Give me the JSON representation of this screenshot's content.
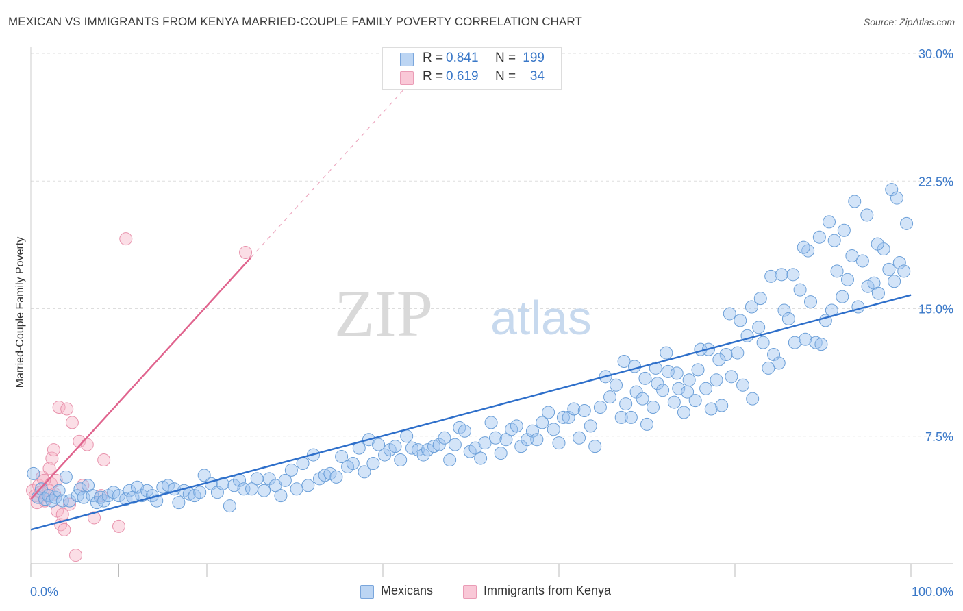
{
  "title": "MEXICAN VS IMMIGRANTS FROM KENYA MARRIED-COUPLE FAMILY POVERTY CORRELATION CHART",
  "source": "Source: ZipAtlas.com",
  "watermark": {
    "part1": "ZIP",
    "part2": "atlas"
  },
  "legend_top": {
    "rows": [
      {
        "r_label": "R =",
        "r_value": "0.841",
        "n_label": "N =",
        "n_value": "199"
      },
      {
        "r_label": "R =",
        "r_value": "0.619",
        "n_label": "N =",
        "n_value": "34"
      }
    ]
  },
  "legend_bottom": {
    "series_a": "Mexicans",
    "series_b": "Immigrants from Kenya"
  },
  "colors": {
    "mexicans_fill": "#9ec4ef",
    "mexicans_stroke": "#6b9fd8",
    "mexicans_line": "#2e6fca",
    "kenya_fill": "#f6b5c8",
    "kenya_stroke": "#e892ac",
    "kenya_line": "#e0648e",
    "axis_text": "#3a78c8",
    "grid": "#dddddd"
  },
  "chart_data": {
    "type": "scatter",
    "title": "MEXICAN VS IMMIGRANTS FROM KENYA MARRIED-COUPLE FAMILY POVERTY CORRELATION CHART",
    "xlabel": "",
    "ylabel": "Married-Couple Family Poverty",
    "xlim": [
      0,
      100
    ],
    "ylim": [
      0,
      30
    ],
    "x_tick_labels": [
      "0.0%",
      "100.0%"
    ],
    "y_ticks": [
      7.5,
      15.0,
      22.5,
      30.0
    ],
    "y_tick_labels": [
      "7.5%",
      "15.0%",
      "22.5%",
      "30.0%"
    ],
    "grid": "horizontal dashed",
    "legend_position": "top-center and bottom",
    "series": [
      {
        "name": "Mexicans",
        "R": 0.841,
        "N": 199,
        "trend": {
          "x": [
            0,
            100
          ],
          "y": [
            2.0,
            15.8
          ]
        },
        "points": [
          [
            0.3,
            5.3
          ],
          [
            0.8,
            3.9
          ],
          [
            1.2,
            4.4
          ],
          [
            1.6,
            3.8
          ],
          [
            2.0,
            4.0
          ],
          [
            2.4,
            3.7
          ],
          [
            2.8,
            3.9
          ],
          [
            3.2,
            4.3
          ],
          [
            3.6,
            3.7
          ],
          [
            4.0,
            5.1
          ],
          [
            4.4,
            3.7
          ],
          [
            5.3,
            4.0
          ],
          [
            5.6,
            4.4
          ],
          [
            6.0,
            3.9
          ],
          [
            6.5,
            4.6
          ],
          [
            7.0,
            4.0
          ],
          [
            7.5,
            3.6
          ],
          [
            7.9,
            3.9
          ],
          [
            8.3,
            3.7
          ],
          [
            8.8,
            4.0
          ],
          [
            9.4,
            4.2
          ],
          [
            10.0,
            4.0
          ],
          [
            10.8,
            3.8
          ],
          [
            11.2,
            4.3
          ],
          [
            11.6,
            3.9
          ],
          [
            12.1,
            4.5
          ],
          [
            12.6,
            4.0
          ],
          [
            13.2,
            4.3
          ],
          [
            13.8,
            4.0
          ],
          [
            14.3,
            3.7
          ],
          [
            15.0,
            4.5
          ],
          [
            15.6,
            4.6
          ],
          [
            16.3,
            4.4
          ],
          [
            16.8,
            3.6
          ],
          [
            17.4,
            4.3
          ],
          [
            18.0,
            4.1
          ],
          [
            18.6,
            4.0
          ],
          [
            19.2,
            4.2
          ],
          [
            19.7,
            5.2
          ],
          [
            20.5,
            4.7
          ],
          [
            21.2,
            4.2
          ],
          [
            21.8,
            4.7
          ],
          [
            22.6,
            3.4
          ],
          [
            23.1,
            4.6
          ],
          [
            23.7,
            4.9
          ],
          [
            24.2,
            4.4
          ],
          [
            25.1,
            4.4
          ],
          [
            25.7,
            5.0
          ],
          [
            26.5,
            4.3
          ],
          [
            27.1,
            5.0
          ],
          [
            27.8,
            4.6
          ],
          [
            28.4,
            4.0
          ],
          [
            28.9,
            4.9
          ],
          [
            29.6,
            5.5
          ],
          [
            30.2,
            4.4
          ],
          [
            30.9,
            5.9
          ],
          [
            31.5,
            4.6
          ],
          [
            32.1,
            6.4
          ],
          [
            32.8,
            5.0
          ],
          [
            33.4,
            5.2
          ],
          [
            34.0,
            5.3
          ],
          [
            34.7,
            5.1
          ],
          [
            35.3,
            6.3
          ],
          [
            36.0,
            5.7
          ],
          [
            36.6,
            5.9
          ],
          [
            37.3,
            6.8
          ],
          [
            37.9,
            5.4
          ],
          [
            38.4,
            7.3
          ],
          [
            38.9,
            5.9
          ],
          [
            39.5,
            7.0
          ],
          [
            40.2,
            6.4
          ],
          [
            40.8,
            6.7
          ],
          [
            41.4,
            6.9
          ],
          [
            42.0,
            6.1
          ],
          [
            42.7,
            7.5
          ],
          [
            43.3,
            6.8
          ],
          [
            44.0,
            6.7
          ],
          [
            44.6,
            6.4
          ],
          [
            45.1,
            6.7
          ],
          [
            45.8,
            6.9
          ],
          [
            46.4,
            7.0
          ],
          [
            47.0,
            7.4
          ],
          [
            47.6,
            6.1
          ],
          [
            48.2,
            7.0
          ],
          [
            48.7,
            8.0
          ],
          [
            49.3,
            7.8
          ],
          [
            49.9,
            6.6
          ],
          [
            50.5,
            6.8
          ],
          [
            51.1,
            6.2
          ],
          [
            51.6,
            7.1
          ],
          [
            52.3,
            8.3
          ],
          [
            52.8,
            7.4
          ],
          [
            53.4,
            6.5
          ],
          [
            54.0,
            7.3
          ],
          [
            54.6,
            7.9
          ],
          [
            55.2,
            8.1
          ],
          [
            55.7,
            6.9
          ],
          [
            56.4,
            7.3
          ],
          [
            57.0,
            7.8
          ],
          [
            57.5,
            7.3
          ],
          [
            58.1,
            8.3
          ],
          [
            58.8,
            8.9
          ],
          [
            59.4,
            7.9
          ],
          [
            60.0,
            7.1
          ],
          [
            60.5,
            8.6
          ],
          [
            61.1,
            8.6
          ],
          [
            61.7,
            9.1
          ],
          [
            62.3,
            7.4
          ],
          [
            62.9,
            9.0
          ],
          [
            63.6,
            8.1
          ],
          [
            64.1,
            6.9
          ],
          [
            64.7,
            9.2
          ],
          [
            65.3,
            11.0
          ],
          [
            65.8,
            9.8
          ],
          [
            66.5,
            10.5
          ],
          [
            67.1,
            8.6
          ],
          [
            67.6,
            9.4
          ],
          [
            68.2,
            8.6
          ],
          [
            68.8,
            10.1
          ],
          [
            69.5,
            9.7
          ],
          [
            70.0,
            8.2
          ],
          [
            70.7,
            9.2
          ],
          [
            71.2,
            10.6
          ],
          [
            71.8,
            10.2
          ],
          [
            72.4,
            11.3
          ],
          [
            73.1,
            9.5
          ],
          [
            73.6,
            10.3
          ],
          [
            74.2,
            8.9
          ],
          [
            74.8,
            10.8
          ],
          [
            75.5,
            9.6
          ],
          [
            76.1,
            12.6
          ],
          [
            76.7,
            10.3
          ],
          [
            77.3,
            9.1
          ],
          [
            77.9,
            10.8
          ],
          [
            78.5,
            9.3
          ],
          [
            79.0,
            12.3
          ],
          [
            79.6,
            11.0
          ],
          [
            80.3,
            12.4
          ],
          [
            80.9,
            10.5
          ],
          [
            81.4,
            13.4
          ],
          [
            82.0,
            9.7
          ],
          [
            82.7,
            13.9
          ],
          [
            83.2,
            13.0
          ],
          [
            83.8,
            11.5
          ],
          [
            84.4,
            12.3
          ],
          [
            85.0,
            11.8
          ],
          [
            85.6,
            14.9
          ],
          [
            86.1,
            14.4
          ],
          [
            86.8,
            13.0
          ],
          [
            87.4,
            16.1
          ],
          [
            88.0,
            13.2
          ],
          [
            88.6,
            15.4
          ],
          [
            89.2,
            13.0
          ],
          [
            89.8,
            12.9
          ],
          [
            90.3,
            14.3
          ],
          [
            91.0,
            14.9
          ],
          [
            91.6,
            17.2
          ],
          [
            92.2,
            15.7
          ],
          [
            92.8,
            16.7
          ],
          [
            93.3,
            18.1
          ],
          [
            94.0,
            15.1
          ],
          [
            94.5,
            17.8
          ],
          [
            95.1,
            16.3
          ],
          [
            95.8,
            16.5
          ],
          [
            96.3,
            15.9
          ],
          [
            96.9,
            18.5
          ],
          [
            97.5,
            17.3
          ],
          [
            98.1,
            16.6
          ],
          [
            98.7,
            17.7
          ],
          [
            99.2,
            17.2
          ],
          [
            97.8,
            22.0
          ],
          [
            98.4,
            21.5
          ],
          [
            99.5,
            20.0
          ],
          [
            96.2,
            18.8
          ],
          [
            95.0,
            20.5
          ],
          [
            93.6,
            21.3
          ],
          [
            92.4,
            19.6
          ],
          [
            91.3,
            19.0
          ],
          [
            90.7,
            20.1
          ],
          [
            89.6,
            19.2
          ],
          [
            88.3,
            18.4
          ],
          [
            87.8,
            18.6
          ],
          [
            86.6,
            17.0
          ],
          [
            85.3,
            17.0
          ],
          [
            84.1,
            16.9
          ],
          [
            82.9,
            15.6
          ],
          [
            81.9,
            15.1
          ],
          [
            80.6,
            14.3
          ],
          [
            79.4,
            14.7
          ],
          [
            78.2,
            12.0
          ],
          [
            77.0,
            12.6
          ],
          [
            75.8,
            11.4
          ],
          [
            74.6,
            10.1
          ],
          [
            73.4,
            11.2
          ],
          [
            72.2,
            12.4
          ],
          [
            71.0,
            11.5
          ],
          [
            69.8,
            10.9
          ],
          [
            68.6,
            11.6
          ],
          [
            67.4,
            11.9
          ]
        ]
      },
      {
        "name": "Immigrants from Kenya",
        "R": 0.619,
        "N": 34,
        "trend": {
          "x": [
            0,
            25
          ],
          "y": [
            3.8,
            18.0
          ],
          "dashed_extension": {
            "x": [
              25,
              44
            ],
            "y": [
              18.0,
              28.8
            ]
          }
        },
        "points": [
          [
            0.2,
            4.3
          ],
          [
            0.5,
            4.0
          ],
          [
            0.7,
            3.6
          ],
          [
            0.9,
            4.6
          ],
          [
            1.1,
            4.2
          ],
          [
            1.3,
            5.1
          ],
          [
            1.5,
            4.9
          ],
          [
            1.6,
            3.7
          ],
          [
            1.8,
            4.0
          ],
          [
            2.0,
            4.3
          ],
          [
            2.1,
            5.6
          ],
          [
            2.3,
            4.7
          ],
          [
            2.4,
            6.2
          ],
          [
            2.6,
            6.7
          ],
          [
            2.7,
            4.1
          ],
          [
            2.9,
            4.9
          ],
          [
            3.0,
            3.1
          ],
          [
            3.2,
            9.2
          ],
          [
            3.4,
            2.3
          ],
          [
            3.6,
            2.9
          ],
          [
            3.8,
            2.0
          ],
          [
            4.1,
            9.1
          ],
          [
            4.4,
            3.5
          ],
          [
            4.7,
            8.3
          ],
          [
            5.1,
            0.5
          ],
          [
            5.5,
            7.2
          ],
          [
            5.9,
            4.6
          ],
          [
            6.4,
            7.0
          ],
          [
            7.2,
            2.7
          ],
          [
            8.0,
            4.0
          ],
          [
            8.3,
            6.1
          ],
          [
            10.0,
            2.2
          ],
          [
            10.8,
            19.1
          ],
          [
            24.4,
            18.3
          ]
        ]
      }
    ]
  }
}
